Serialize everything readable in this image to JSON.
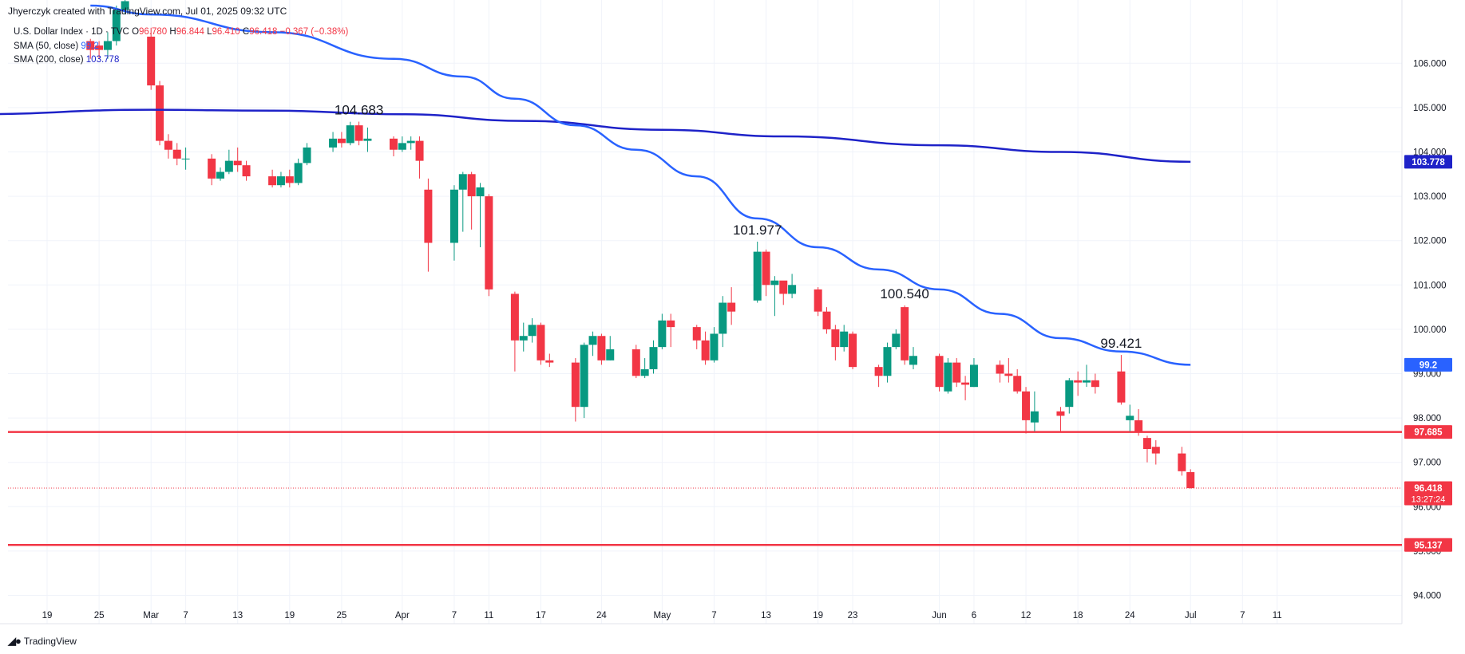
{
  "credit": "Jhyerczyk created with TradingView.com, Jul 01, 2025 09:32 UTC",
  "legend": {
    "symbol": "U.S. Dollar Index · 1D · TVC",
    "open_label": "O",
    "open": "96.780",
    "high_label": "H",
    "high": "96.844",
    "low_label": "L",
    "low": "96.410",
    "close_label": "C",
    "close": "96.418",
    "change": "−0.367 (−0.38%)",
    "sma50_label": "SMA (50, close)",
    "sma50_value": "99.2",
    "sma200_label": "SMA (200, close)",
    "sma200_value": "103.778"
  },
  "footer": {
    "brand": "TradingView",
    "logo_icon": "tradingview-logo-icon"
  },
  "colors": {
    "up": "#089981",
    "down": "#f23645",
    "sma50": "#2962ff",
    "sma200": "#1e22c8",
    "level": "#f23645",
    "grid": "#f0f3fa",
    "axis_text": "#131722"
  },
  "chart_data": {
    "type": "candlestick",
    "ylim": [
      93.3,
      107.0
    ],
    "y_ticks": [
      "94.000",
      "95.000",
      "96.000",
      "97.000",
      "98.000",
      "99.000",
      "100.000",
      "101.000",
      "102.000",
      "103.000",
      "104.000",
      "105.000",
      "106.000"
    ],
    "x_ticks": [
      {
        "label": "19",
        "date": "2025-02-19"
      },
      {
        "label": "25",
        "date": "2025-02-25"
      },
      {
        "label": "Mar",
        "date": "2025-03-03"
      },
      {
        "label": "7",
        "date": "2025-03-07"
      },
      {
        "label": "13",
        "date": "2025-03-13"
      },
      {
        "label": "19",
        "date": "2025-03-19"
      },
      {
        "label": "25",
        "date": "2025-03-25"
      },
      {
        "label": "Apr",
        "date": "2025-04-01"
      },
      {
        "label": "7",
        "date": "2025-04-07"
      },
      {
        "label": "11",
        "date": "2025-04-11"
      },
      {
        "label": "17",
        "date": "2025-04-17"
      },
      {
        "label": "24",
        "date": "2025-04-24"
      },
      {
        "label": "May",
        "date": "2025-05-01"
      },
      {
        "label": "7",
        "date": "2025-05-07"
      },
      {
        "label": "13",
        "date": "2025-05-13"
      },
      {
        "label": "19",
        "date": "2025-05-19"
      },
      {
        "label": "23",
        "date": "2025-05-23"
      },
      {
        "label": "Jun",
        "date": "2025-06-02"
      },
      {
        "label": "6",
        "date": "2025-06-06"
      },
      {
        "label": "12",
        "date": "2025-06-12"
      },
      {
        "label": "18",
        "date": "2025-06-18"
      },
      {
        "label": "24",
        "date": "2025-06-24"
      },
      {
        "label": "Jul",
        "date": "2025-07-01"
      },
      {
        "label": "7",
        "date": "2025-07-07"
      },
      {
        "label": "11",
        "date": "2025-07-11"
      }
    ],
    "candles": [
      [
        "2025-02-24",
        106.5,
        106.3,
        106.55,
        106.1
      ],
      [
        "2025-02-25",
        106.4,
        106.3,
        106.5,
        106.1
      ],
      [
        "2025-02-26",
        106.3,
        106.5,
        106.7,
        106.1
      ],
      [
        "2025-02-27",
        106.5,
        107.2,
        107.3,
        106.4
      ],
      [
        "2025-02-28",
        107.2,
        107.4,
        107.6,
        107.1
      ],
      [
        "2025-03-03",
        106.6,
        105.5,
        106.8,
        105.4
      ],
      [
        "2025-03-04",
        105.5,
        104.25,
        105.6,
        104.15
      ],
      [
        "2025-03-05",
        104.25,
        104.05,
        104.4,
        103.85
      ],
      [
        "2025-03-06",
        104.05,
        103.85,
        104.2,
        103.7
      ],
      [
        "2025-03-07",
        103.85,
        103.85,
        104.1,
        103.6
      ],
      [
        "2025-03-10",
        103.85,
        103.4,
        103.95,
        103.25
      ],
      [
        "2025-03-11",
        103.4,
        103.55,
        103.65,
        103.35
      ],
      [
        "2025-03-12",
        103.55,
        103.8,
        104.05,
        103.5
      ],
      [
        "2025-03-13",
        103.8,
        103.7,
        104.1,
        103.55
      ],
      [
        "2025-03-14",
        103.7,
        103.45,
        103.8,
        103.35
      ],
      [
        "2025-03-17",
        103.45,
        103.25,
        103.6,
        103.2
      ],
      [
        "2025-03-18",
        103.25,
        103.45,
        103.55,
        103.2
      ],
      [
        "2025-03-19",
        103.45,
        103.3,
        103.6,
        103.2
      ],
      [
        "2025-03-20",
        103.3,
        103.75,
        103.85,
        103.25
      ],
      [
        "2025-03-21",
        103.75,
        104.1,
        104.2,
        103.7
      ],
      [
        "2025-03-24",
        104.1,
        104.3,
        104.45,
        104.0
      ],
      [
        "2025-03-25",
        104.3,
        104.2,
        104.45,
        104.1
      ],
      [
        "2025-03-26",
        104.2,
        104.6,
        104.68,
        104.15
      ],
      [
        "2025-03-27",
        104.6,
        104.25,
        104.683,
        104.15
      ],
      [
        "2025-03-28",
        104.25,
        104.3,
        104.55,
        104.0
      ],
      [
        "2025-03-31",
        104.3,
        104.05,
        104.35,
        103.9
      ],
      [
        "2025-04-01",
        104.05,
        104.2,
        104.35,
        104.0
      ],
      [
        "2025-04-02",
        104.2,
        104.25,
        104.35,
        104.05
      ],
      [
        "2025-04-03",
        104.25,
        103.8,
        104.35,
        103.4
      ],
      [
        "2025-04-04",
        103.15,
        101.95,
        103.4,
        101.3
      ],
      [
        "2025-04-07",
        101.95,
        103.15,
        103.25,
        101.55
      ],
      [
        "2025-04-08",
        103.15,
        103.5,
        103.55,
        102.2
      ],
      [
        "2025-04-09",
        103.5,
        103.0,
        103.55,
        102.25
      ],
      [
        "2025-04-10",
        103.0,
        103.2,
        103.3,
        101.85
      ],
      [
        "2025-04-11",
        103.0,
        100.9,
        103.05,
        100.75
      ],
      [
        "2025-04-14",
        100.8,
        99.75,
        100.85,
        99.05
      ],
      [
        "2025-04-15",
        99.75,
        99.85,
        100.15,
        99.5
      ],
      [
        "2025-04-16",
        99.85,
        100.1,
        100.25,
        99.7
      ],
      [
        "2025-04-17",
        100.1,
        99.3,
        100.15,
        99.2
      ],
      [
        "2025-04-18",
        99.3,
        99.25,
        99.45,
        99.15
      ],
      [
        "2025-04-21",
        99.25,
        98.25,
        99.35,
        97.92
      ],
      [
        "2025-04-22",
        98.25,
        99.65,
        99.7,
        98.0
      ],
      [
        "2025-04-23",
        99.65,
        99.85,
        99.95,
        99.4
      ],
      [
        "2025-04-24",
        99.85,
        99.3,
        99.9,
        99.2
      ],
      [
        "2025-04-25",
        99.3,
        99.55,
        99.85,
        99.3
      ],
      [
        "2025-04-28",
        99.55,
        98.95,
        99.65,
        98.9
      ],
      [
        "2025-04-29",
        98.95,
        99.1,
        99.35,
        98.9
      ],
      [
        "2025-04-30",
        99.1,
        99.6,
        99.75,
        99.0
      ],
      [
        "2025-05-01",
        99.6,
        100.2,
        100.35,
        99.55
      ],
      [
        "2025-05-02",
        100.2,
        100.05,
        100.35,
        99.6
      ],
      [
        "2025-05-05",
        100.05,
        99.75,
        100.1,
        99.55
      ],
      [
        "2025-05-06",
        99.75,
        99.3,
        99.95,
        99.2
      ],
      [
        "2025-05-07",
        99.3,
        99.9,
        100.05,
        99.25
      ],
      [
        "2025-05-08",
        99.9,
        100.6,
        100.75,
        99.6
      ],
      [
        "2025-05-09",
        100.6,
        100.4,
        100.95,
        100.1
      ],
      [
        "2025-05-12",
        100.65,
        101.75,
        101.977,
        100.6
      ],
      [
        "2025-05-13",
        101.75,
        101.0,
        101.8,
        100.75
      ],
      [
        "2025-05-14",
        101.0,
        101.1,
        101.2,
        100.3
      ],
      [
        "2025-05-15",
        101.1,
        100.8,
        101.05,
        100.55
      ],
      [
        "2025-05-16",
        100.8,
        101.0,
        101.25,
        100.7
      ],
      [
        "2025-05-19",
        100.9,
        100.4,
        100.95,
        100.3
      ],
      [
        "2025-05-20",
        100.4,
        100.0,
        100.5,
        99.9
      ],
      [
        "2025-05-21",
        100.0,
        99.6,
        100.1,
        99.3
      ],
      [
        "2025-05-22",
        99.6,
        99.95,
        100.1,
        99.5
      ],
      [
        "2025-05-23",
        99.9,
        99.15,
        99.95,
        99.1
      ],
      [
        "2025-05-26",
        99.15,
        98.95,
        99.2,
        98.7
      ],
      [
        "2025-05-27",
        98.95,
        99.6,
        99.7,
        98.8
      ],
      [
        "2025-05-28",
        99.6,
        99.9,
        100.0,
        99.55
      ],
      [
        "2025-05-29",
        100.5,
        99.3,
        100.54,
        99.2
      ],
      [
        "2025-05-30",
        99.2,
        99.4,
        99.6,
        99.1
      ],
      [
        "2025-06-02",
        99.4,
        98.7,
        99.45,
        98.6
      ],
      [
        "2025-06-03",
        98.6,
        99.25,
        99.35,
        98.55
      ],
      [
        "2025-06-04",
        99.25,
        98.8,
        99.35,
        98.7
      ],
      [
        "2025-06-05",
        98.8,
        98.75,
        98.95,
        98.4
      ],
      [
        "2025-06-06",
        98.7,
        99.2,
        99.35,
        98.7
      ],
      [
        "2025-06-09",
        99.2,
        99.0,
        99.3,
        98.8
      ],
      [
        "2025-06-10",
        99.0,
        98.95,
        99.35,
        98.8
      ],
      [
        "2025-06-11",
        98.95,
        98.6,
        99.1,
        98.55
      ],
      [
        "2025-06-12",
        98.6,
        97.95,
        98.7,
        97.65
      ],
      [
        "2025-06-13",
        97.9,
        98.15,
        98.6,
        97.7
      ],
      [
        "2025-06-16",
        98.15,
        98.05,
        98.25,
        97.7
      ],
      [
        "2025-06-17",
        98.25,
        98.85,
        98.9,
        98.1
      ],
      [
        "2025-06-18",
        98.85,
        98.8,
        99.05,
        98.5
      ],
      [
        "2025-06-19",
        98.8,
        98.85,
        99.2,
        98.7
      ],
      [
        "2025-06-20",
        98.85,
        98.7,
        99.0,
        98.55
      ],
      [
        "2025-06-23",
        99.05,
        98.35,
        99.421,
        98.3
      ],
      [
        "2025-06-24",
        97.95,
        98.05,
        98.3,
        97.7
      ],
      [
        "2025-06-25",
        97.95,
        97.7,
        98.2,
        97.6
      ],
      [
        "2025-06-26",
        97.55,
        97.3,
        97.6,
        97.0
      ],
      [
        "2025-06-27",
        97.35,
        97.2,
        97.5,
        96.95
      ],
      [
        "2025-06-30",
        97.2,
        96.8,
        97.35,
        96.7
      ],
      [
        "2025-07-01",
        96.78,
        96.418,
        96.844,
        96.41
      ]
    ],
    "sma50": [
      [
        "2025-02-24",
        107.3
      ],
      [
        "2025-03-03",
        107.1
      ],
      [
        "2025-03-17",
        106.7
      ],
      [
        "2025-03-31",
        106.1
      ],
      [
        "2025-04-08",
        105.7
      ],
      [
        "2025-04-14",
        105.2
      ],
      [
        "2025-04-21",
        104.6
      ],
      [
        "2025-04-28",
        104.05
      ],
      [
        "2025-05-05",
        103.45
      ],
      [
        "2025-05-12",
        102.5
      ],
      [
        "2025-05-19",
        101.85
      ],
      [
        "2025-05-26",
        101.35
      ],
      [
        "2025-06-02",
        100.9
      ],
      [
        "2025-06-09",
        100.35
      ],
      [
        "2025-06-16",
        99.8
      ],
      [
        "2025-06-23",
        99.5
      ],
      [
        "2025-07-01",
        99.2
      ]
    ],
    "sma200": [
      [
        "2025-02-10",
        104.85
      ],
      [
        "2025-03-03",
        104.95
      ],
      [
        "2025-03-17",
        104.93
      ],
      [
        "2025-04-01",
        104.85
      ],
      [
        "2025-04-15",
        104.7
      ],
      [
        "2025-05-01",
        104.5
      ],
      [
        "2025-05-15",
        104.35
      ],
      [
        "2025-06-02",
        104.15
      ],
      [
        "2025-06-16",
        104.0
      ],
      [
        "2025-07-01",
        103.778
      ]
    ],
    "levels": [
      {
        "value": "97.685"
      },
      {
        "value": "95.137"
      }
    ],
    "last_price": {
      "value": "96.418",
      "countdown": "13:27:24"
    },
    "axis_badges": [
      {
        "series": "sma200",
        "value": "103.778"
      },
      {
        "series": "sma50",
        "value": "99.2"
      }
    ],
    "annotations": [
      {
        "text": "104.683",
        "date": "2025-03-27",
        "value": 104.683
      },
      {
        "text": "101.977",
        "date": "2025-05-12",
        "value": 101.977
      },
      {
        "text": "100.540",
        "date": "2025-05-29",
        "value": 100.54
      },
      {
        "text": "99.421",
        "date": "2025-06-23",
        "value": 99.421
      }
    ]
  }
}
